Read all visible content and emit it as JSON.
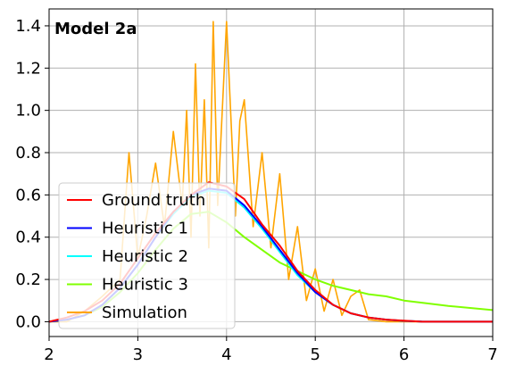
{
  "chart_data": {
    "type": "line",
    "annotation": "Model 2a",
    "xlim": [
      2,
      7
    ],
    "ylim": [
      -0.07,
      1.48
    ],
    "x_ticks": [
      2,
      3,
      4,
      5,
      6,
      7
    ],
    "x_tick_labels": [
      "2",
      "3",
      "4",
      "5",
      "6",
      "7"
    ],
    "y_ticks": [
      0.0,
      0.2,
      0.4,
      0.6,
      0.8,
      1.0,
      1.2,
      1.4
    ],
    "y_tick_labels": [
      "0.0",
      "0.2",
      "0.4",
      "0.6",
      "0.8",
      "1.0",
      "1.2",
      "1.4"
    ],
    "grid": true,
    "legend_position": "lower-left",
    "series": [
      {
        "name": "Ground truth",
        "color": "#ff0000",
        "x": [
          2.0,
          2.2,
          2.4,
          2.6,
          2.8,
          3.0,
          3.2,
          3.4,
          3.6,
          3.8,
          4.0,
          4.2,
          4.4,
          4.6,
          4.8,
          5.0,
          5.2,
          5.4,
          5.6,
          5.8,
          6.0,
          6.2,
          6.5,
          7.0
        ],
        "y": [
          0.0,
          0.02,
          0.05,
          0.1,
          0.18,
          0.3,
          0.42,
          0.52,
          0.6,
          0.66,
          0.64,
          0.58,
          0.46,
          0.36,
          0.24,
          0.15,
          0.08,
          0.04,
          0.02,
          0.01,
          0.005,
          0.0,
          0.0,
          0.0
        ]
      },
      {
        "name": "Heuristic 1",
        "color": "#0000ff",
        "x": [
          2.0,
          2.2,
          2.4,
          2.6,
          2.8,
          3.0,
          3.2,
          3.4,
          3.6,
          3.8,
          4.0,
          4.2,
          4.4,
          4.6,
          4.8,
          5.0,
          5.2,
          5.4,
          5.6,
          5.8,
          6.0,
          6.2,
          6.5,
          7.0
        ],
        "y": [
          0.0,
          0.01,
          0.03,
          0.08,
          0.16,
          0.27,
          0.4,
          0.52,
          0.6,
          0.63,
          0.62,
          0.55,
          0.45,
          0.34,
          0.23,
          0.14,
          0.08,
          0.04,
          0.02,
          0.01,
          0.004,
          0.001,
          0.0,
          0.0
        ]
      },
      {
        "name": "Heuristic 2",
        "color": "#00ffff",
        "x": [
          2.0,
          2.2,
          2.4,
          2.6,
          2.8,
          3.0,
          3.2,
          3.4,
          3.6,
          3.8,
          4.0,
          4.2,
          4.4,
          4.6,
          4.8,
          5.0,
          5.2,
          5.4,
          5.6,
          5.8,
          6.0,
          6.2,
          6.5,
          7.0
        ],
        "y": [
          0.0,
          0.01,
          0.03,
          0.08,
          0.16,
          0.27,
          0.4,
          0.51,
          0.59,
          0.62,
          0.61,
          0.54,
          0.44,
          0.33,
          0.22,
          0.14,
          0.08,
          0.04,
          0.02,
          0.01,
          0.004,
          0.001,
          0.0,
          0.0
        ]
      },
      {
        "name": "Heuristic 3",
        "color": "#80ff00",
        "x": [
          2.0,
          2.2,
          2.4,
          2.6,
          2.8,
          3.0,
          3.2,
          3.4,
          3.6,
          3.8,
          4.0,
          4.2,
          4.4,
          4.6,
          4.8,
          5.0,
          5.2,
          5.4,
          5.6,
          5.8,
          6.0,
          6.2,
          6.5,
          7.0
        ],
        "y": [
          0.0,
          0.01,
          0.03,
          0.07,
          0.14,
          0.23,
          0.34,
          0.44,
          0.51,
          0.52,
          0.47,
          0.4,
          0.34,
          0.28,
          0.24,
          0.2,
          0.17,
          0.15,
          0.13,
          0.12,
          0.1,
          0.09,
          0.075,
          0.055
        ]
      },
      {
        "name": "Simulation",
        "color": "#ffa500",
        "x": [
          2.0,
          2.2,
          2.4,
          2.6,
          2.8,
          2.9,
          3.0,
          3.1,
          3.2,
          3.3,
          3.4,
          3.5,
          3.55,
          3.6,
          3.65,
          3.7,
          3.75,
          3.8,
          3.85,
          3.9,
          4.0,
          4.1,
          4.15,
          4.2,
          4.3,
          4.4,
          4.5,
          4.6,
          4.7,
          4.8,
          4.9,
          5.0,
          5.1,
          5.2,
          5.3,
          5.4,
          5.5,
          5.6,
          5.8,
          6.0,
          6.5,
          7.0
        ],
        "y": [
          0.0,
          0.0,
          0.05,
          0.12,
          0.2,
          0.8,
          0.3,
          0.5,
          0.75,
          0.45,
          0.9,
          0.55,
          1.0,
          0.4,
          1.22,
          0.5,
          1.05,
          0.35,
          1.42,
          0.55,
          1.42,
          0.5,
          0.95,
          1.05,
          0.45,
          0.8,
          0.35,
          0.7,
          0.2,
          0.45,
          0.1,
          0.25,
          0.05,
          0.2,
          0.03,
          0.12,
          0.15,
          0.01,
          0.0,
          0.0,
          0.0,
          0.0
        ]
      }
    ]
  }
}
